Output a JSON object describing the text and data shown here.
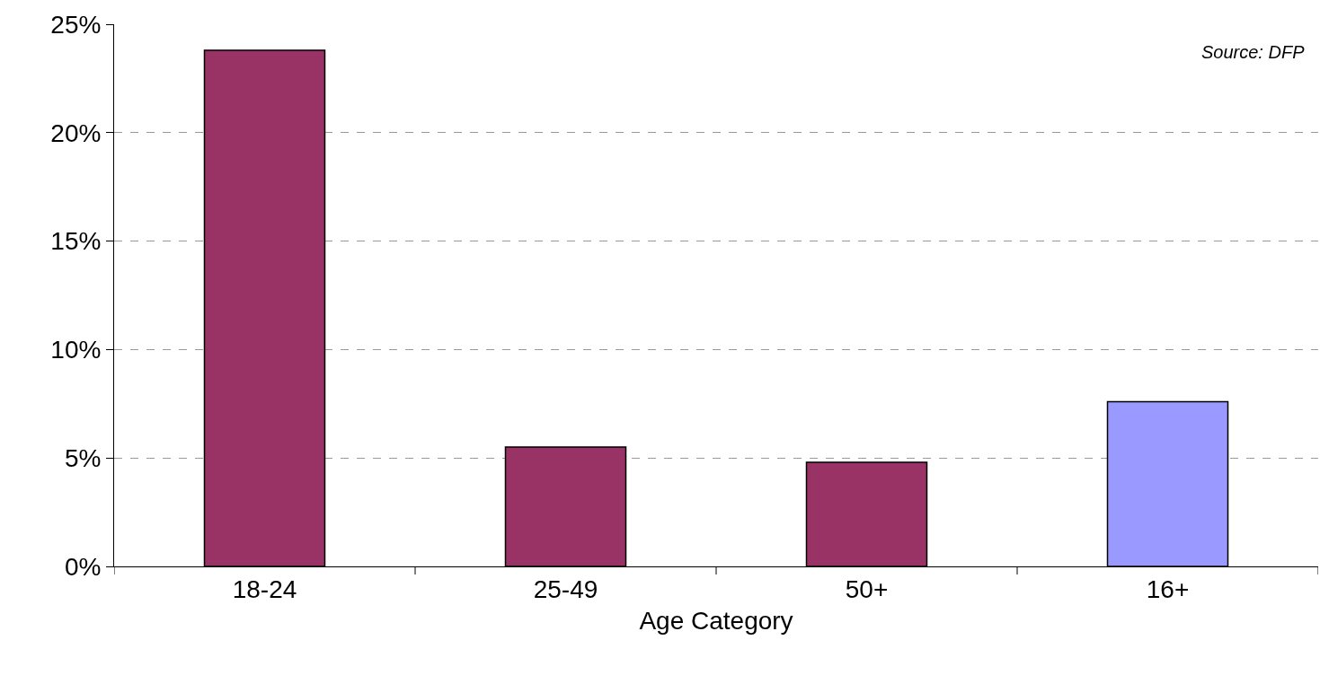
{
  "chart_data": {
    "type": "bar",
    "categories": [
      "18-24",
      "25-49",
      "50+",
      "16+"
    ],
    "values": [
      23.8,
      5.5,
      4.8,
      7.6
    ],
    "colors": [
      "#993366",
      "#993366",
      "#993366",
      "#9999ff"
    ],
    "xlabel": "Age Category",
    "ylim": [
      0,
      25
    ],
    "yticks": [
      {
        "value": 0,
        "label": "0%"
      },
      {
        "value": 5,
        "label": "5%"
      },
      {
        "value": 10,
        "label": "10%"
      },
      {
        "value": 15,
        "label": "15%"
      },
      {
        "value": 20,
        "label": "20%"
      },
      {
        "value": 25,
        "label": "25%"
      }
    ],
    "grid": "y",
    "annotations": [
      "Source: DFP"
    ]
  }
}
